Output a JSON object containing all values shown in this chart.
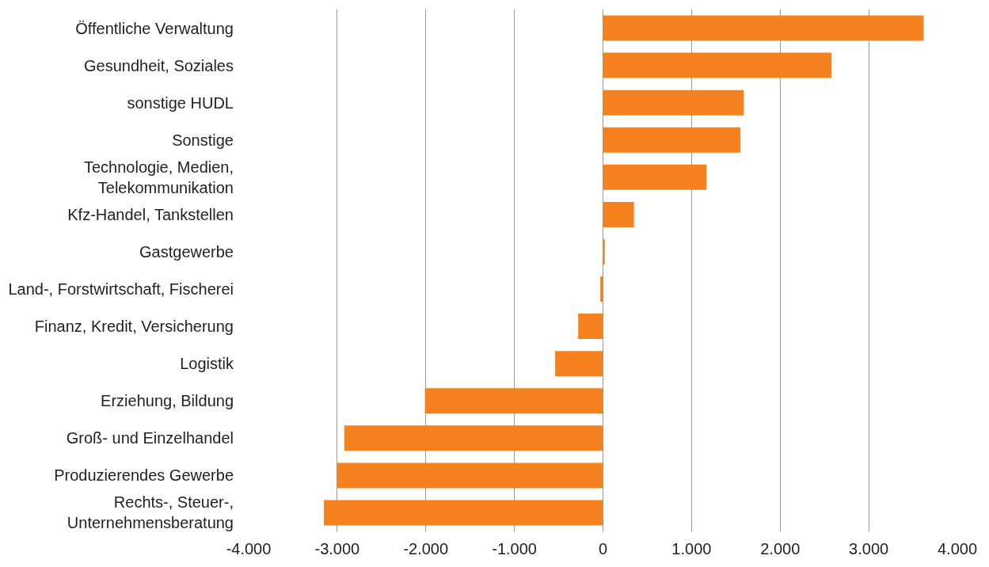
{
  "chart_data": {
    "type": "bar",
    "orientation": "horizontal",
    "categories": [
      "Öffentliche Verwaltung",
      "Gesundheit, Soziales",
      "sonstige HUDL",
      "Sonstige",
      "Technologie, Medien,\nTelekommunikation",
      "Kfz-Handel, Tankstellen",
      "Gastgewerbe",
      "Land-, Forstwirtschaft, Fischerei",
      "Finanz, Kredit, Versicherung",
      "Logistik",
      "Erziehung, Bildung",
      "Groß- und Einzelhandel",
      "Produzierendes Gewerbe",
      "Rechts-, Steuer-,\nUnternehmensberatung"
    ],
    "values": [
      3620,
      2580,
      1590,
      1550,
      1170,
      350,
      20,
      -30,
      -280,
      -540,
      -2010,
      -2920,
      -3000,
      -3150
    ],
    "color": "#f5821f",
    "xlim": [
      -4000,
      4000
    ],
    "xticks": [
      {
        "value": -4000,
        "label": "-4.000"
      },
      {
        "value": -3000,
        "label": "-3.000"
      },
      {
        "value": -2000,
        "label": "-2.000"
      },
      {
        "value": -1000,
        "label": "-1.000"
      },
      0,
      {
        "value": 1000,
        "label": "1.000"
      },
      {
        "value": 2000,
        "label": "2.000"
      },
      {
        "value": 3000,
        "label": "3.000"
      },
      {
        "value": 4000,
        "label": "4.000"
      }
    ],
    "grid": "x"
  }
}
